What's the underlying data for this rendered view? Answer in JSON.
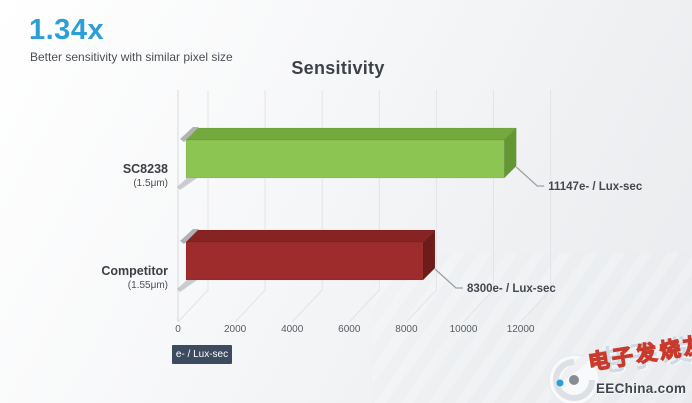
{
  "header": {
    "ratio": "1.34x",
    "subtitle": "Better sensitivity with similar pixel size"
  },
  "colors": {
    "accent_blue": "#2d9ed6",
    "badge_bg": "#3d4b60",
    "grid": "#e2e4e7",
    "axis": "#d6d9dd",
    "leader": "#9aa0a6",
    "text_dark": "#3e4248",
    "text_medium": "#4b4f55"
  },
  "chart_data": {
    "type": "bar",
    "orientation": "horizontal",
    "style_3d": true,
    "title": "Sensitivity",
    "categories": [
      {
        "name": "SC8238",
        "sublabel": "(1.5μm)",
        "value": 11147,
        "value_label": "11147e- / Lux-sec",
        "color_front": "#8cc552",
        "color_top": "#74a93e",
        "color_side": "#639732"
      },
      {
        "name": "Competitor",
        "sublabel": "(1.55μm)",
        "value": 8300,
        "value_label": "8300e- / Lux-sec",
        "color_front": "#9e2c2c",
        "color_top": "#872323",
        "color_side": "#701b1b"
      }
    ],
    "xticks": [
      0,
      2000,
      4000,
      6000,
      8000,
      10000,
      12000
    ],
    "xlim": [
      0,
      13000
    ],
    "xlabel_badge": "e- / Lux-sec",
    "grid": true,
    "legend": "none"
  },
  "watermark": {
    "cn_text": "电子发烧友",
    "site": "EEChina.com"
  }
}
